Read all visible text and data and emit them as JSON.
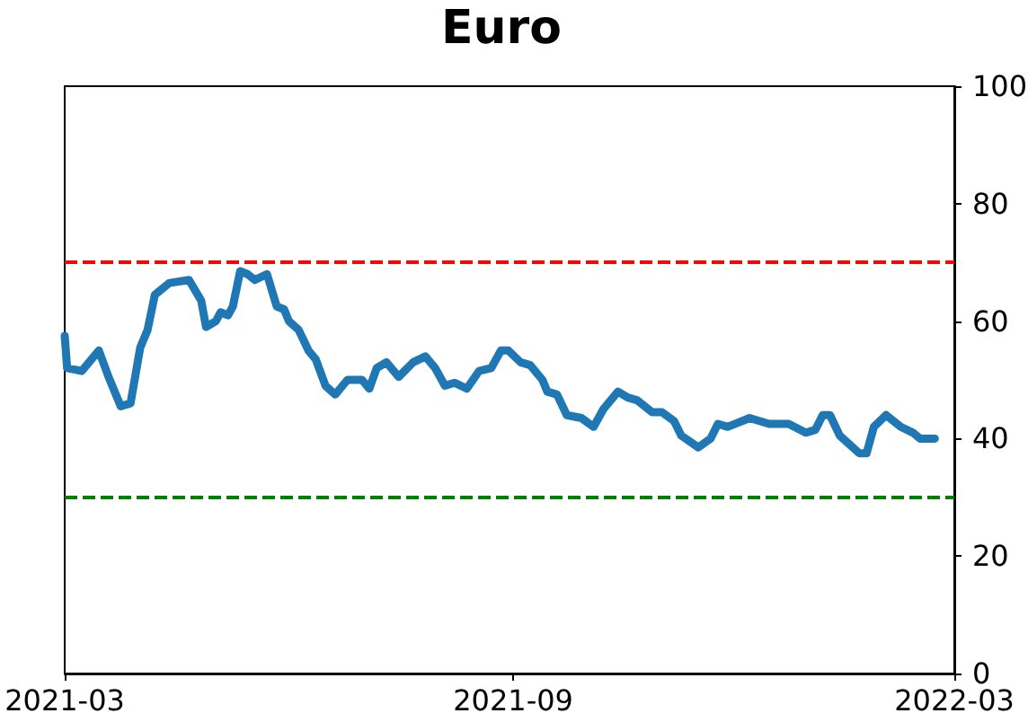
{
  "chart_data": {
    "type": "line",
    "title": "Euro",
    "x": [
      "2021-03-01",
      "2021-03-02",
      "2021-03-08",
      "2021-03-15",
      "2021-03-19",
      "2021-03-24",
      "2021-03-28",
      "2021-04-01",
      "2021-04-04",
      "2021-04-07",
      "2021-04-13",
      "2021-04-21",
      "2021-04-26",
      "2021-04-28",
      "2021-05-02",
      "2021-05-04",
      "2021-05-07",
      "2021-05-09",
      "2021-05-12",
      "2021-05-15",
      "2021-05-18",
      "2021-05-23",
      "2021-05-27",
      "2021-05-30",
      "2021-06-01",
      "2021-06-05",
      "2021-06-09",
      "2021-06-12",
      "2021-06-16",
      "2021-06-20",
      "2021-06-25",
      "2021-07-01",
      "2021-07-04",
      "2021-07-07",
      "2021-07-11",
      "2021-07-16",
      "2021-07-22",
      "2021-07-27",
      "2021-07-31",
      "2021-08-04",
      "2021-08-08",
      "2021-08-13",
      "2021-08-18",
      "2021-08-23",
      "2021-08-27",
      "2021-08-30",
      "2021-09-04",
      "2021-09-08",
      "2021-09-13",
      "2021-09-15",
      "2021-09-19",
      "2021-09-23",
      "2021-09-29",
      "2021-10-04",
      "2021-10-08",
      "2021-10-14",
      "2021-10-18",
      "2021-10-22",
      "2021-10-28",
      "2021-11-01",
      "2021-11-06",
      "2021-11-09",
      "2021-11-16",
      "2021-11-21",
      "2021-11-24",
      "2021-11-28",
      "2021-12-07",
      "2021-12-15",
      "2021-12-23",
      "2021-12-30",
      "2022-01-03",
      "2022-01-06",
      "2022-01-09",
      "2022-01-13",
      "2022-01-17",
      "2022-01-21",
      "2022-01-24",
      "2022-01-27",
      "2022-02-01",
      "2022-02-07",
      "2022-02-12",
      "2022-02-15",
      "2022-02-21"
    ],
    "series": [
      {
        "color": "#1f77b4",
        "values": [
          57.5,
          52,
          51.5,
          55,
          50.5,
          45.5,
          46,
          55.5,
          58.5,
          64.5,
          66.5,
          67,
          63.5,
          59,
          60,
          61.5,
          61,
          62.5,
          68.5,
          68,
          67,
          68,
          62.5,
          62,
          60,
          58.5,
          55,
          53.5,
          49,
          47.5,
          50,
          50,
          48.5,
          52,
          53,
          50.5,
          53,
          54,
          52,
          49,
          49.5,
          48.5,
          51.5,
          52,
          55,
          55,
          53,
          52.5,
          50,
          48,
          47.5,
          44,
          43.5,
          42,
          45,
          48,
          47,
          46.5,
          44.5,
          44.5,
          43,
          40.5,
          38.5,
          40,
          42.5,
          42,
          43.5,
          42.5,
          42.5,
          41,
          41.5,
          44,
          44,
          40.5,
          39,
          37.5,
          37.5,
          42,
          44,
          42,
          41,
          40,
          40
        ]
      }
    ],
    "xlim": [
      "2021-03",
      "2022-03"
    ],
    "xticks": [
      "2021-03",
      "2021-09",
      "2022-03"
    ],
    "ylim": [
      0,
      100
    ],
    "yticks": [
      0,
      20,
      40,
      60,
      80,
      100
    ],
    "ref_lines": [
      {
        "axis": "y",
        "value": 70,
        "color": "#ff0000",
        "line_style": "dashed"
      },
      {
        "axis": "y",
        "value": 30,
        "color": "#008000",
        "line_style": "dashed"
      }
    ],
    "marker": "none",
    "line_style": "solid"
  }
}
